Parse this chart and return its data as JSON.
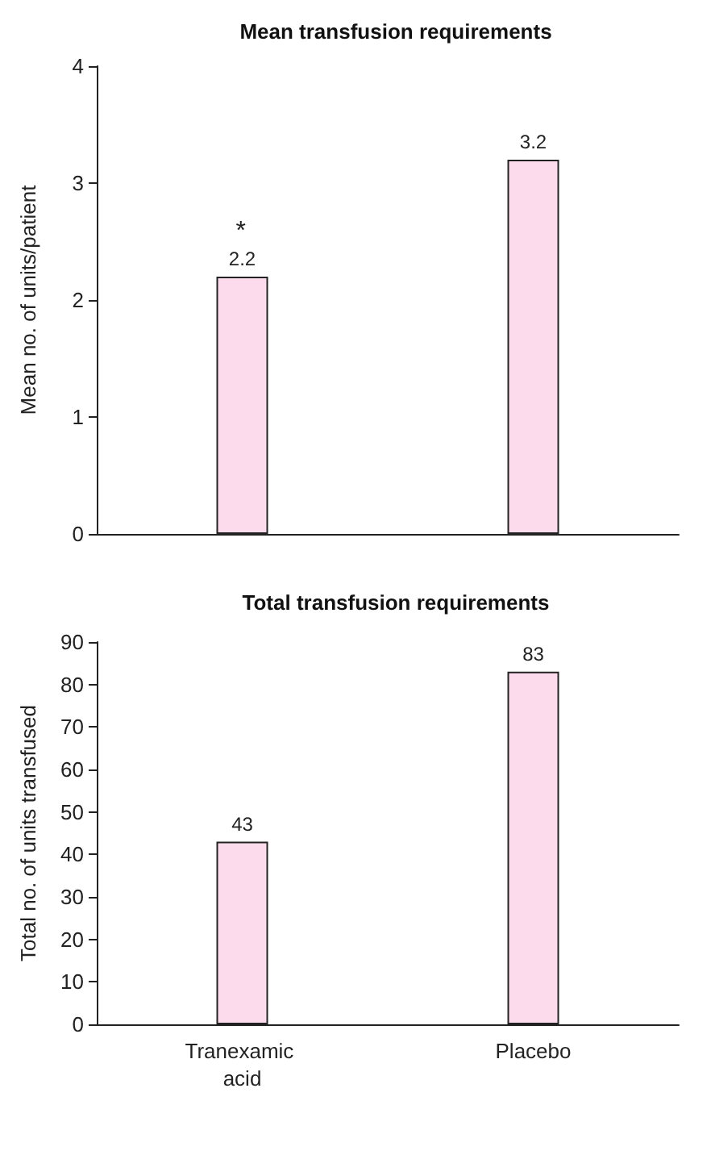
{
  "chart_data": [
    {
      "type": "bar",
      "title": "Mean transfusion requirements",
      "ylabel": "Mean no. of units/patient",
      "categories": [
        "Tranexamic acid",
        "Placebo"
      ],
      "values": [
        2.2,
        3.2
      ],
      "color": "#fcdcec",
      "ylim": [
        0,
        4
      ],
      "yticks": [
        0,
        1,
        2,
        3,
        4
      ],
      "data_labels": true,
      "tick_labels": "y",
      "annotations": [
        "*"
      ]
    },
    {
      "type": "bar",
      "title": "Total transfusion requirements",
      "ylabel": "Total no. of units transfused",
      "categories": [
        "Tranexamic acid",
        "Placebo"
      ],
      "values": [
        43,
        83
      ],
      "color": "#fcdcec",
      "ylim": [
        0,
        90
      ],
      "yticks": [
        0,
        10,
        20,
        30,
        40,
        50,
        60,
        70,
        80,
        90
      ],
      "data_labels": true
    }
  ]
}
